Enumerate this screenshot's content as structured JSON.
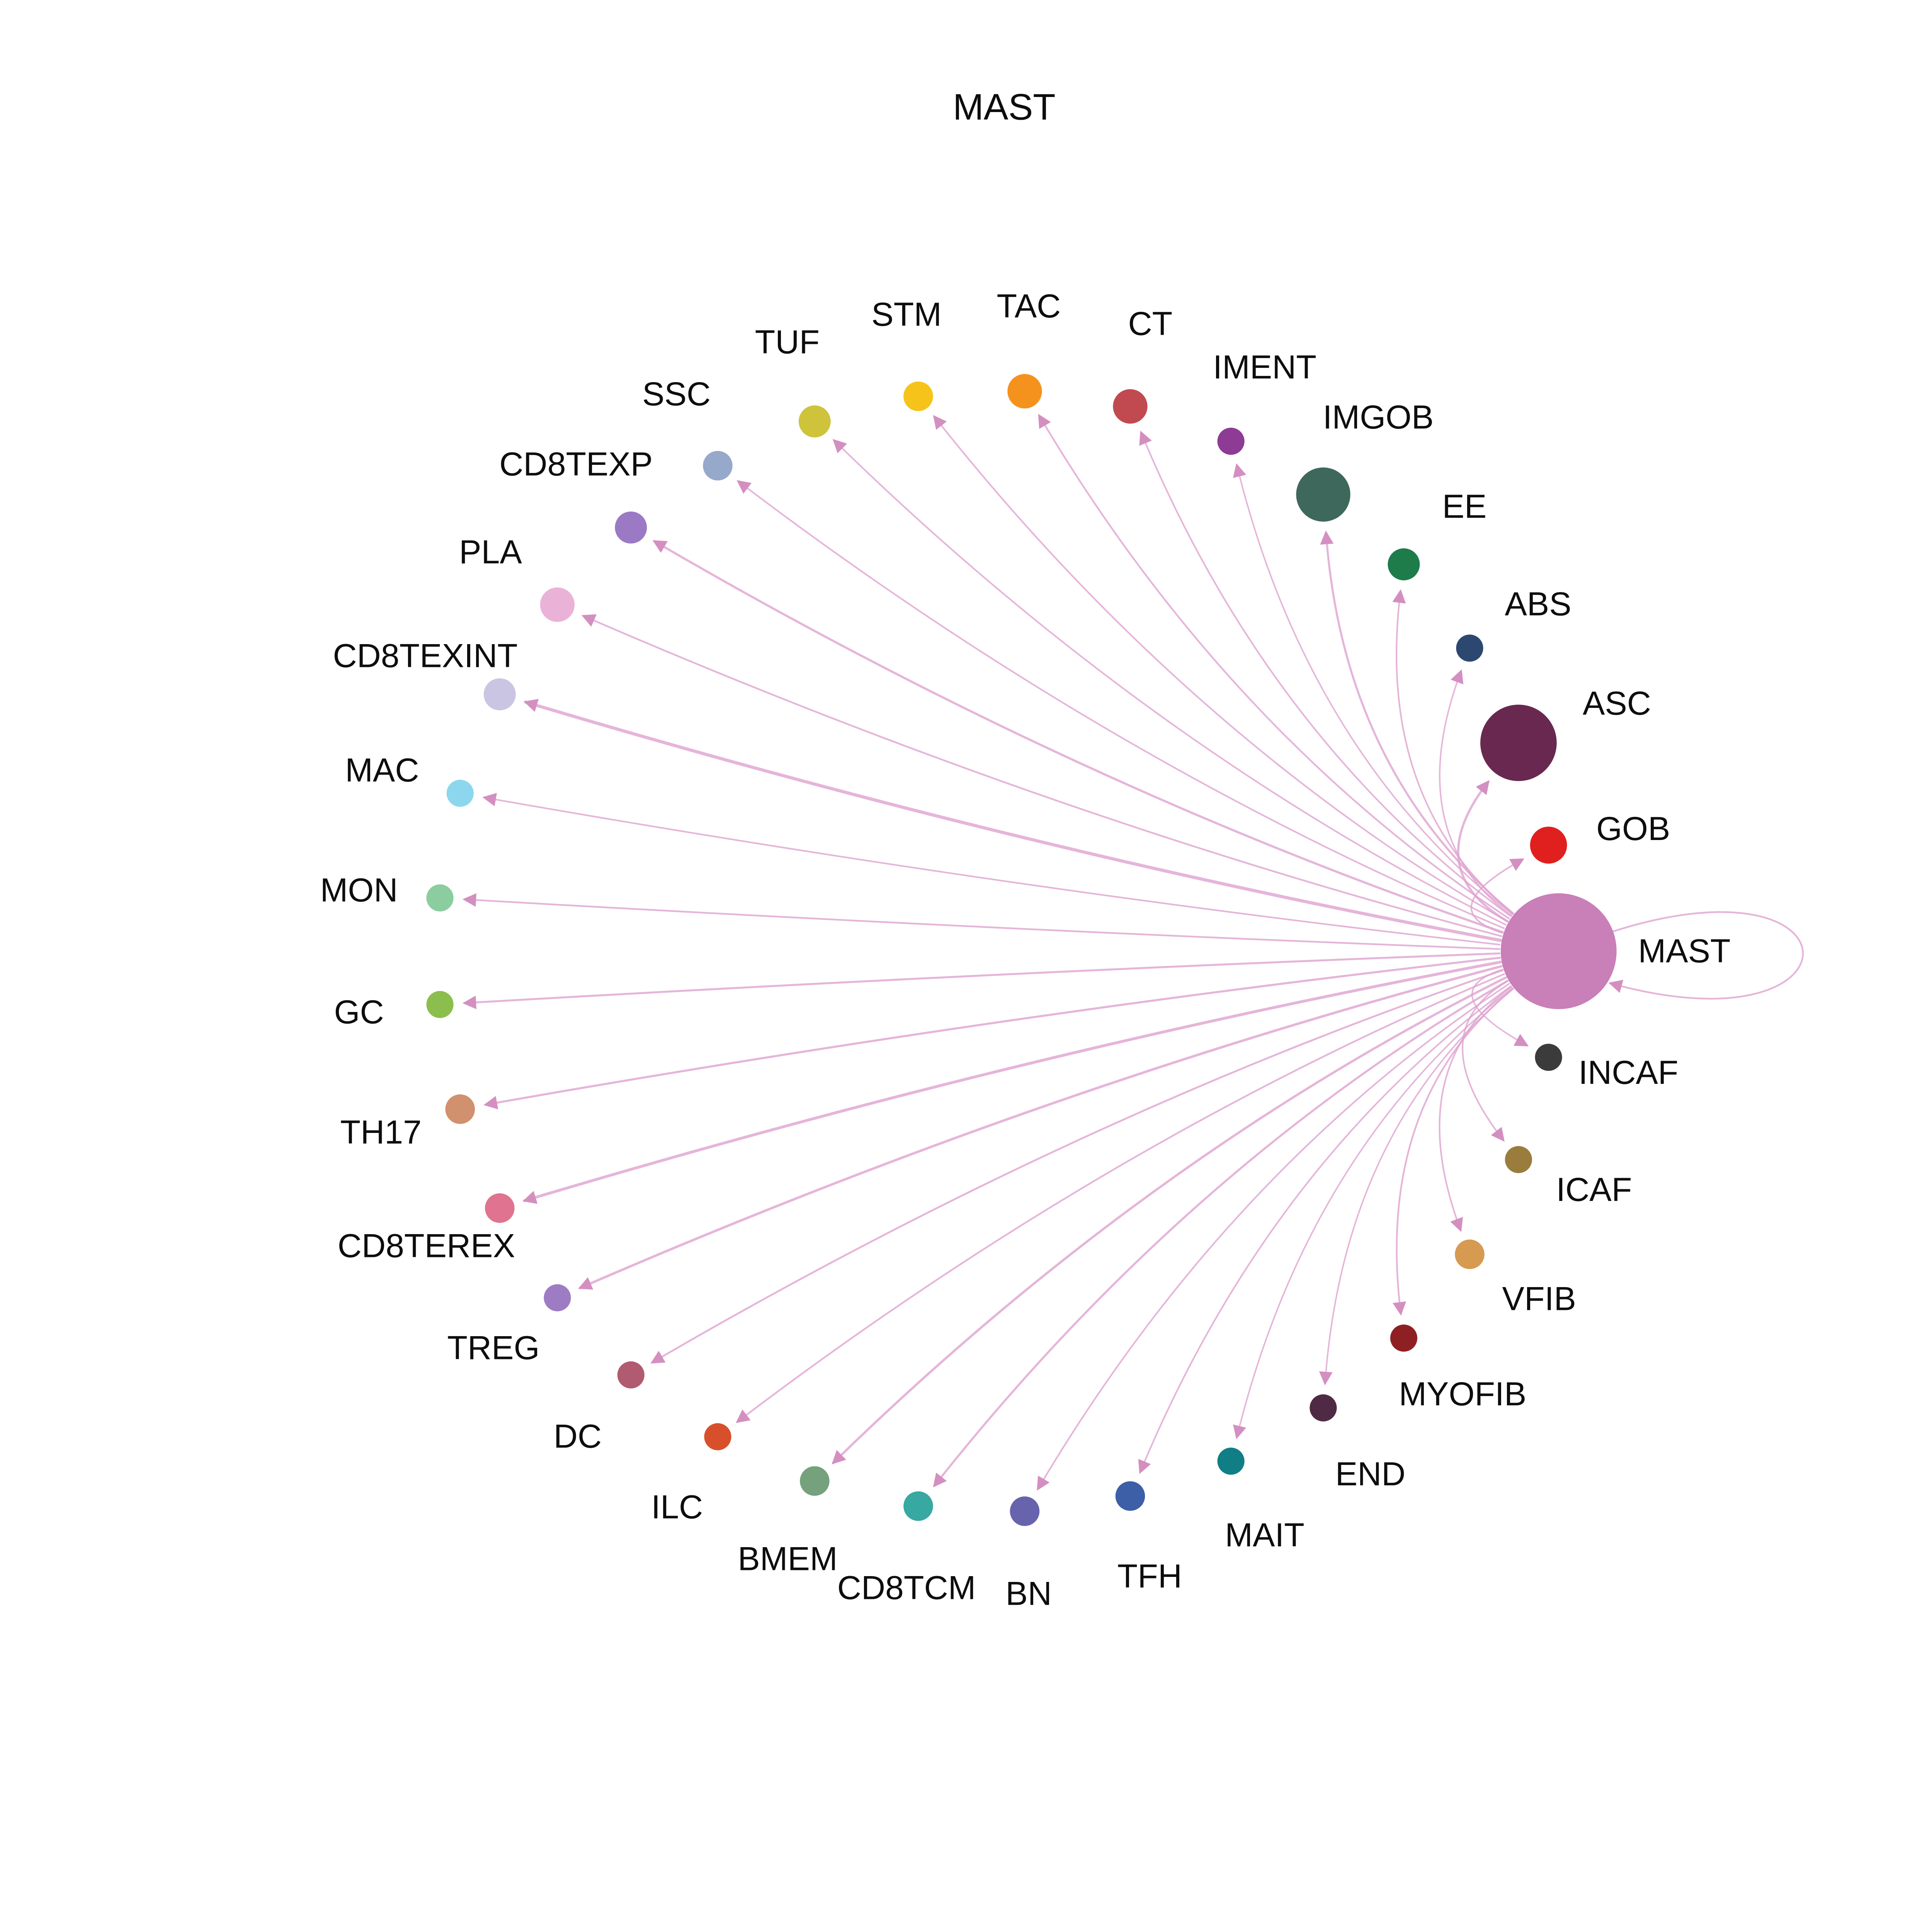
{
  "diagram": {
    "title": "MAST",
    "type": "cell-communication-network",
    "source_node": "MAST",
    "edge_color": "#DEA3CF",
    "arrow_color": "#D48FC1",
    "background": "#ffffff",
    "curvature": 0.22,
    "self_edge": {
      "from": "MAST",
      "to": "MAST",
      "weight": 1.4
    },
    "nodes": [
      {
        "label": "MAST",
        "color": "#C97FB8",
        "size": 47,
        "edge_weight": 0
      },
      {
        "label": "GOB",
        "color": "#E0201F",
        "size": 15,
        "edge_weight": 1.3
      },
      {
        "label": "ASC",
        "color": "#692850",
        "size": 31,
        "edge_weight": 1.9
      },
      {
        "label": "ABS",
        "color": "#2C4870",
        "size": 11,
        "edge_weight": 1.2
      },
      {
        "label": "EE",
        "color": "#1E7C4B",
        "size": 13,
        "edge_weight": 1.3
      },
      {
        "label": "IMGOB",
        "color": "#3F685C",
        "size": 22,
        "edge_weight": 1.7
      },
      {
        "label": "IMENT",
        "color": "#8D3B95",
        "size": 11,
        "edge_weight": 1.2
      },
      {
        "label": "CT",
        "color": "#C04A50",
        "size": 14,
        "edge_weight": 1.3
      },
      {
        "label": "TAC",
        "color": "#F5921E",
        "size": 14,
        "edge_weight": 1.4
      },
      {
        "label": "STM",
        "color": "#F6C31A",
        "size": 12,
        "edge_weight": 1.3
      },
      {
        "label": "TUF",
        "color": "#CFC33B",
        "size": 13,
        "edge_weight": 1.3
      },
      {
        "label": "SSC",
        "color": "#97A9CB",
        "size": 12,
        "edge_weight": 1.3
      },
      {
        "label": "CD8TEXP",
        "color": "#9C79C5",
        "size": 13,
        "edge_weight": 1.8
      },
      {
        "label": "PLA",
        "color": "#EBB2D8",
        "size": 14,
        "edge_weight": 1.4
      },
      {
        "label": "CD8TEXINT",
        "color": "#C9C5E2",
        "size": 13,
        "edge_weight": 2.6
      },
      {
        "label": "MAC",
        "color": "#8CD7EE",
        "size": 11,
        "edge_weight": 1.3
      },
      {
        "label": "MON",
        "color": "#8BCD9E",
        "size": 11,
        "edge_weight": 1.4
      },
      {
        "label": "GC",
        "color": "#8CBE4D",
        "size": 11,
        "edge_weight": 1.6
      },
      {
        "label": "TH17",
        "color": "#D1906E",
        "size": 12,
        "edge_weight": 1.7
      },
      {
        "label": "CD8TEREX",
        "color": "#E0738F",
        "size": 12,
        "edge_weight": 2.3
      },
      {
        "label": "TREG",
        "color": "#9E7CC4",
        "size": 11,
        "edge_weight": 2.0
      },
      {
        "label": "DC",
        "color": "#B05B70",
        "size": 11,
        "edge_weight": 1.5
      },
      {
        "label": "ILC",
        "color": "#D8502B",
        "size": 11,
        "edge_weight": 1.4
      },
      {
        "label": "BMEM",
        "color": "#75A17C",
        "size": 12,
        "edge_weight": 1.9
      },
      {
        "label": "CD8TCM",
        "color": "#38A8A2",
        "size": 12,
        "edge_weight": 1.7
      },
      {
        "label": "BN",
        "color": "#6763AC",
        "size": 12,
        "edge_weight": 1.3
      },
      {
        "label": "TFH",
        "color": "#3D5FA8",
        "size": 12,
        "edge_weight": 1.3
      },
      {
        "label": "MAIT",
        "color": "#0F7F85",
        "size": 11,
        "edge_weight": 1.2
      },
      {
        "label": "END",
        "color": "#4F2A44",
        "size": 11,
        "edge_weight": 1.2
      },
      {
        "label": "MYOFIB",
        "color": "#8E2024",
        "size": 11,
        "edge_weight": 1.4
      },
      {
        "label": "VFIB",
        "color": "#D69A51",
        "size": 12,
        "edge_weight": 1.3
      },
      {
        "label": "ICAF",
        "color": "#9A7D3C",
        "size": 11,
        "edge_weight": 1.3
      },
      {
        "label": "INCAF",
        "color": "#3B3B3B",
        "size": 11,
        "edge_weight": 1.2
      }
    ]
  }
}
